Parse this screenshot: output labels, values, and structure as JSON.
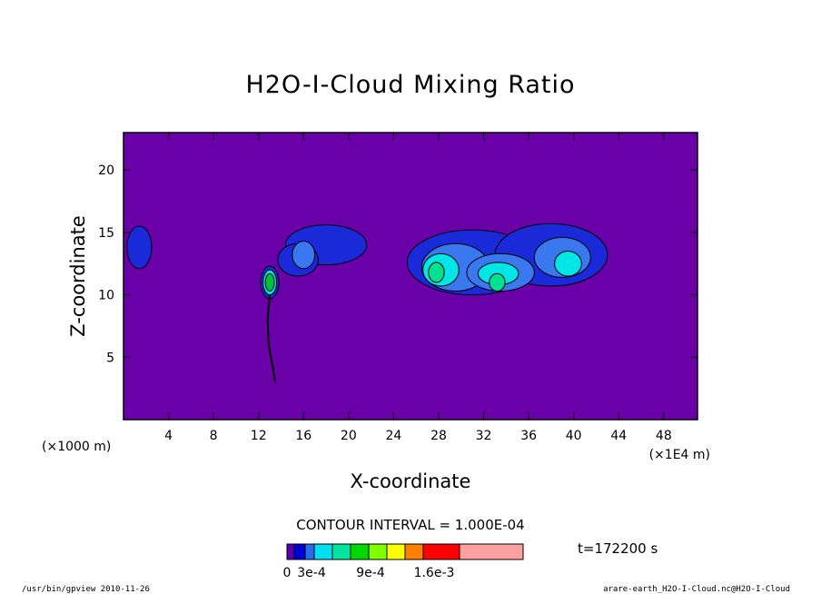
{
  "chart_data": {
    "type": "heatmap",
    "title": "H2O-I-Cloud Mixing Ratio",
    "xlabel": "X-coordinate",
    "ylabel": "Z-coordinate",
    "x_unit_left": "(×1000 m)",
    "x_unit_right": "(×1E4 m)",
    "x_ticks": [
      "4",
      "8",
      "12",
      "16",
      "20",
      "24",
      "28",
      "32",
      "36",
      "40",
      "44",
      "48"
    ],
    "y_ticks": [
      "5",
      "10",
      "15",
      "20"
    ],
    "xlim": [
      0,
      51
    ],
    "ylim": [
      0,
      23
    ],
    "contour_interval_text": "CONTOUR INTERVAL = 1.000E-04",
    "time_text": "t=172200 s",
    "colorbar_labels": [
      "0",
      "3e-4",
      "9e-4",
      "1.6e-3"
    ],
    "colorbar_colors": [
      "#5a00b4",
      "#0000d8",
      "#2a6af0",
      "#00e0f0",
      "#00e6a0",
      "#00d800",
      "#80ff00",
      "#ffff00",
      "#ff8000",
      "#ff0000",
      "#ffa0a0"
    ],
    "background_color": "#6a00a8",
    "level_colors": {
      "l1": "#1a2ad8",
      "l2": "#3a78f0",
      "l3": "#00e6e6",
      "l4": "#00e090",
      "l5": "#00c040"
    },
    "cloud_regions": [
      {
        "level": "l1",
        "cx": 1.4,
        "cz": 13.8,
        "rx": 1.1,
        "rz": 1.7
      },
      {
        "level": "l1",
        "cx": 18.0,
        "cz": 14.0,
        "rx": 3.6,
        "rz": 1.6
      },
      {
        "level": "l1",
        "cx": 15.5,
        "cz": 12.8,
        "rx": 1.8,
        "rz": 1.3
      },
      {
        "level": "l2",
        "cx": 16.0,
        "cz": 13.2,
        "rx": 1.0,
        "rz": 1.1
      },
      {
        "level": "l1",
        "cx": 31.0,
        "cz": 12.6,
        "rx": 5.8,
        "rz": 2.6
      },
      {
        "level": "l1",
        "cx": 38.0,
        "cz": 13.2,
        "rx": 5.0,
        "rz": 2.5
      },
      {
        "level": "l2",
        "cx": 29.5,
        "cz": 12.2,
        "rx": 3.0,
        "rz": 1.9
      },
      {
        "level": "l2",
        "cx": 33.5,
        "cz": 11.8,
        "rx": 3.0,
        "rz": 1.5
      },
      {
        "level": "l2",
        "cx": 39.0,
        "cz": 13.0,
        "rx": 2.5,
        "rz": 1.6
      },
      {
        "level": "l3",
        "cx": 28.2,
        "cz": 12.0,
        "rx": 1.6,
        "rz": 1.3
      },
      {
        "level": "l3",
        "cx": 33.3,
        "cz": 11.7,
        "rx": 1.8,
        "rz": 0.9
      },
      {
        "level": "l3",
        "cx": 39.5,
        "cz": 12.5,
        "rx": 1.2,
        "rz": 1.0
      },
      {
        "level": "l4",
        "cx": 27.8,
        "cz": 11.8,
        "rx": 0.7,
        "rz": 0.8
      },
      {
        "level": "l4",
        "cx": 33.2,
        "cz": 11.0,
        "rx": 0.7,
        "rz": 0.7
      },
      {
        "level": "l1",
        "cx": 13.0,
        "cz": 11.0,
        "rx": 0.8,
        "rz": 1.3
      },
      {
        "level": "l3",
        "cx": 13.0,
        "cz": 11.0,
        "rx": 0.6,
        "rz": 1.0
      },
      {
        "level": "l5",
        "cx": 13.0,
        "cz": 11.0,
        "rx": 0.4,
        "rz": 0.7
      }
    ],
    "stem_points": [
      [
        13.0,
        10.0
      ],
      [
        12.8,
        8.0
      ],
      [
        12.9,
        6.0
      ],
      [
        13.2,
        4.5
      ],
      [
        13.5,
        3.0
      ]
    ]
  },
  "footer": {
    "left": "/usr/bin/gpview  2010-11-26",
    "right": "arare-earth_H2O-I-Cloud.nc@H2O-I-Cloud"
  }
}
